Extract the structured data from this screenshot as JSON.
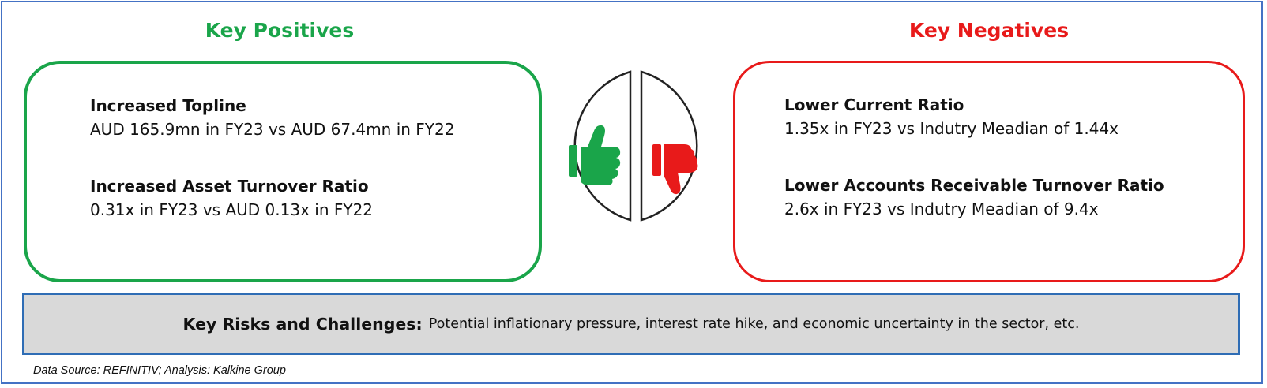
{
  "positives": {
    "heading": "Key Positives",
    "items": [
      {
        "title": "Increased Topline",
        "detail": "AUD 165.9mn in FY23 vs AUD 67.4mn in FY22"
      },
      {
        "title": "Increased Asset Turnover Ratio",
        "detail": "0.31x in FY23 vs AUD 0.13x in FY22"
      }
    ]
  },
  "negatives": {
    "heading": "Key Negatives",
    "items": [
      {
        "title": "Lower Current Ratio",
        "detail": "1.35x in FY23 vs Indutry Meadian of 1.44x"
      },
      {
        "title": "Lower Accounts Receivable Turnover Ratio",
        "detail": "2.6x in FY23 vs Indutry Meadian of 9.4x"
      }
    ]
  },
  "risks": {
    "label": "Key Risks and Challenges:",
    "text": "Potential inflationary pressure, interest rate hike, and economic uncertainty in the sector, etc."
  },
  "source": "Data Source: REFINITIV; Analysis: Kalkine Group",
  "icons": {
    "positive": "thumbs-up-icon",
    "negative": "thumbs-down-icon"
  },
  "colors": {
    "positive": "#1aa54a",
    "negative": "#e81a1a",
    "frame": "#4472c4",
    "risk_bg": "#d9d9d9",
    "risk_border": "#2f6db5"
  }
}
